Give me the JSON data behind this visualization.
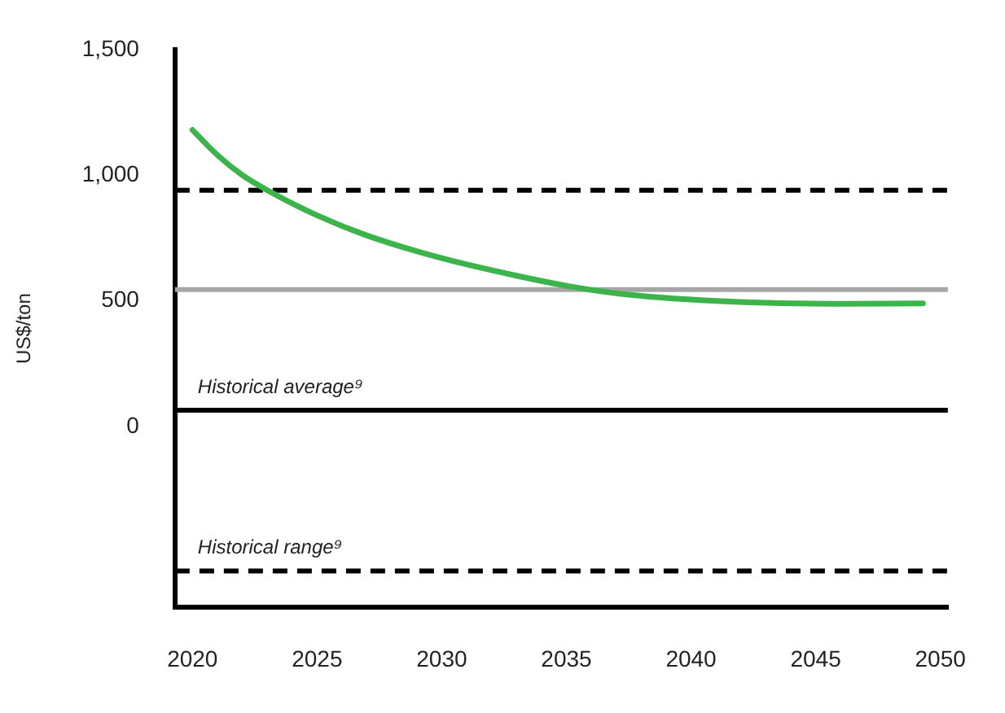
{
  "chart_data": {
    "type": "line",
    "ylabel": "US$/ton",
    "x": [
      2020,
      2021,
      2022,
      2023,
      2025,
      2027,
      2030,
      2033,
      2035,
      2037,
      2040,
      2043,
      2046,
      2049.3
    ],
    "series": [
      {
        "color": "#3cb44b",
        "values": [
          1180,
          1080,
          1000,
          940,
          840,
          760,
          670,
          600,
          560,
          530,
          505,
          492,
          488,
          490
        ]
      }
    ],
    "xlim": [
      2019.3,
      2050.3
    ],
    "xticks": [
      2020,
      2025,
      2030,
      2035,
      2040,
      2045,
      2050
    ],
    "ylim": [
      -720,
      1500
    ],
    "yticks": [
      {
        "value": 1500,
        "label": "1,500"
      },
      {
        "value": 1000,
        "label": "1,000"
      },
      500,
      0
    ],
    "ref_lines": [
      {
        "axis": "y",
        "value": 940,
        "label": null,
        "color": "#000000",
        "line_style": "dashed"
      },
      {
        "axis": "y",
        "value": 545,
        "label": null,
        "color": "#a6a6a6",
        "line_style": "solid"
      },
      {
        "axis": "y",
        "value": 65,
        "label": "Historical average⁹",
        "color": "#000000",
        "line_style": "solid"
      },
      {
        "axis": "y",
        "value": -575,
        "label": "Historical range⁹",
        "color": "#000000",
        "line_style": "dashed"
      }
    ],
    "grid": false,
    "legend": false,
    "marker": "none",
    "line_style": "solid"
  }
}
